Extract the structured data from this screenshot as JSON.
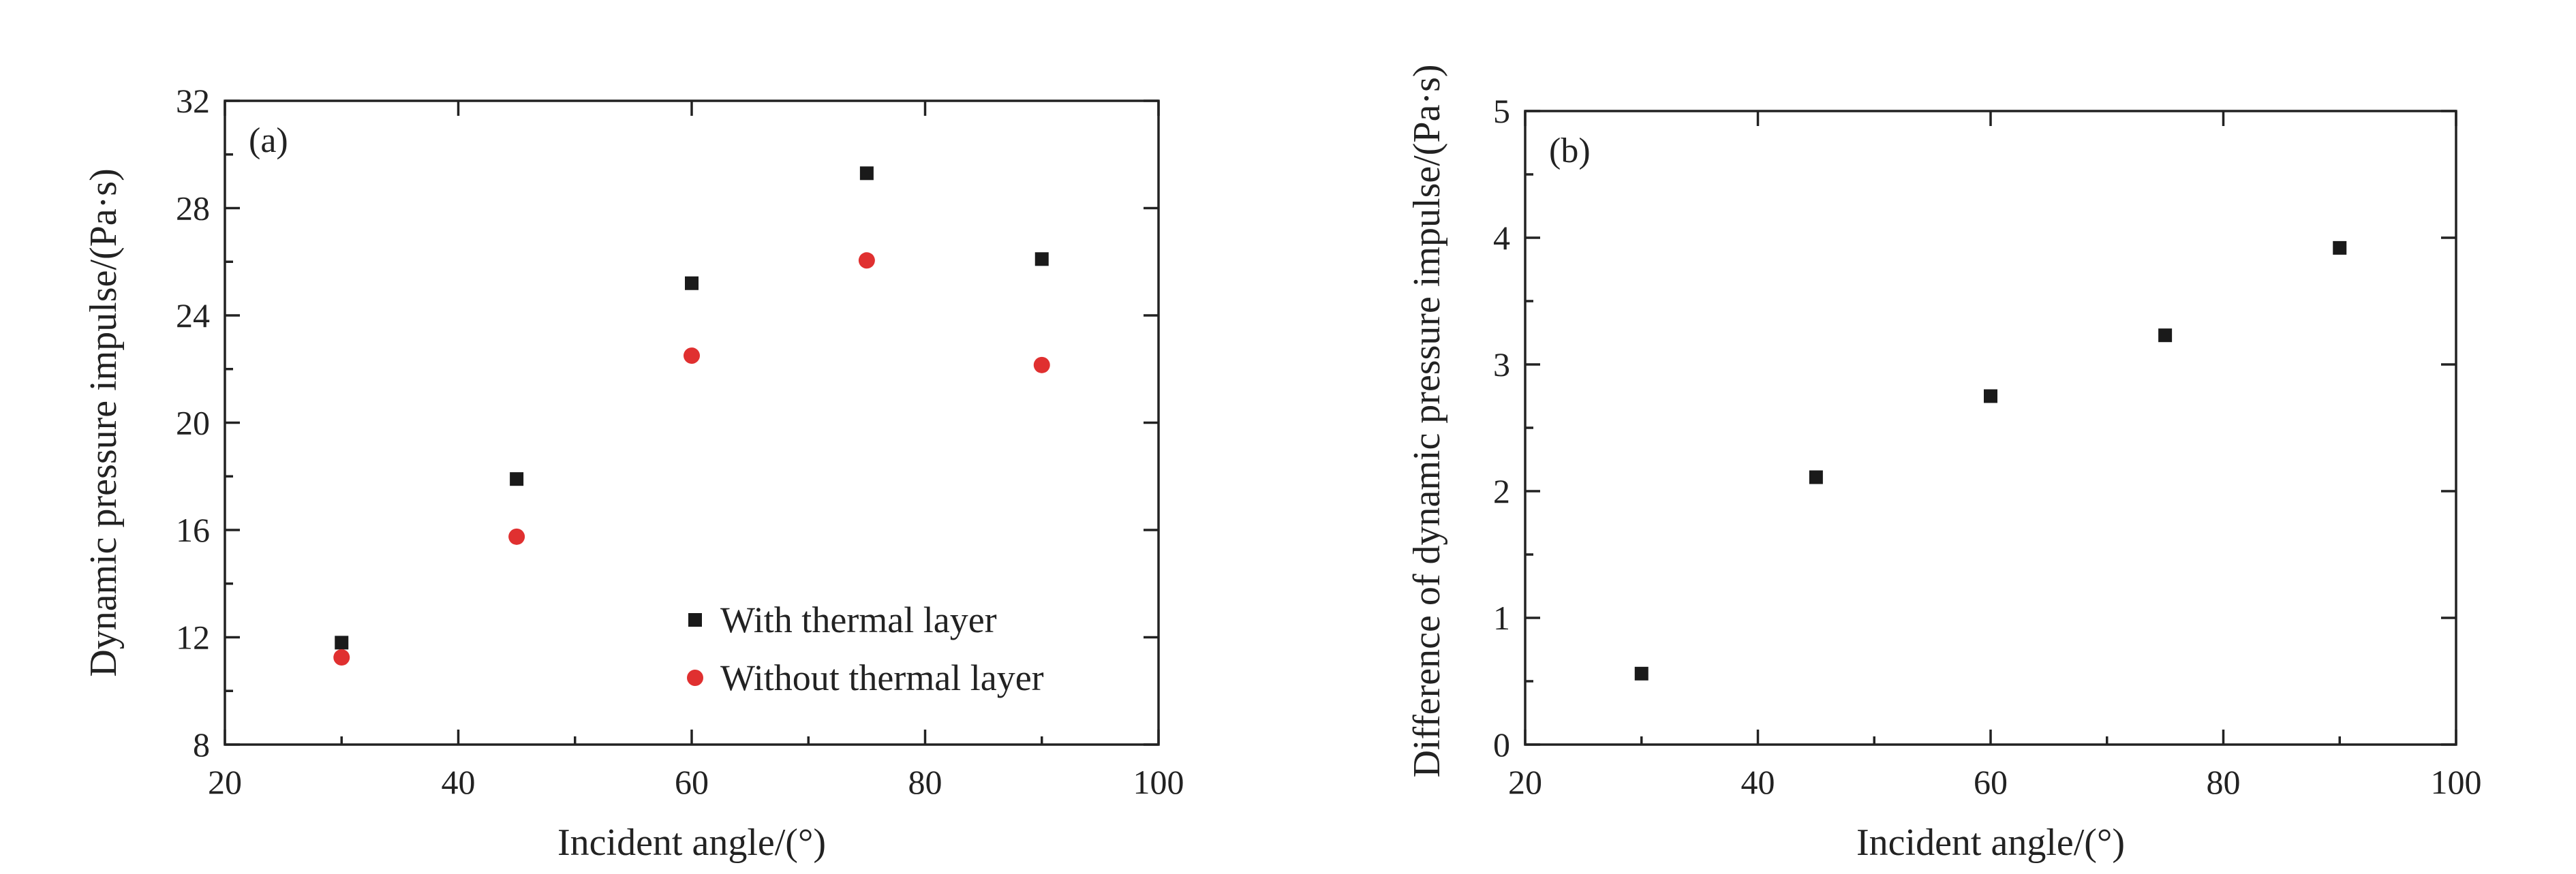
{
  "colors": {
    "with_thermal_layer": "#1a1a1a",
    "without_thermal_layer": "#e03030",
    "axis": "#222222"
  },
  "chart_data": [
    {
      "type": "scatter",
      "panel_label": "(a)",
      "xlabel": "Incident angle/(°)",
      "ylabel": "Dynamic pressure impulse/(Pa·s)",
      "xlim": [
        20,
        100
      ],
      "ylim": [
        8,
        32
      ],
      "xticks": [
        20,
        40,
        60,
        80,
        100
      ],
      "yticks": [
        8,
        12,
        16,
        20,
        24,
        28,
        32
      ],
      "legend_position": "bottom-right",
      "series": [
        {
          "name": "With thermal layer",
          "marker": "square",
          "color": "#1a1a1a",
          "x": [
            30,
            45,
            60,
            75,
            90
          ],
          "y": [
            11.8,
            17.9,
            25.2,
            29.3,
            26.1
          ]
        },
        {
          "name": "Without thermal layer",
          "marker": "circle",
          "color": "#e03030",
          "x": [
            30,
            45,
            60,
            75,
            90
          ],
          "y": [
            11.25,
            15.75,
            22.5,
            26.05,
            22.15
          ]
        }
      ]
    },
    {
      "type": "scatter",
      "panel_label": "(b)",
      "xlabel": "Incident angle/(°)",
      "ylabel": "Difference of dynamic pressure impulse/(Pa·s)",
      "xlim": [
        20,
        100
      ],
      "ylim": [
        0,
        5
      ],
      "xticks": [
        20,
        40,
        60,
        80,
        100
      ],
      "yticks": [
        0,
        1,
        2,
        3,
        4,
        5
      ],
      "series": [
        {
          "marker": "square",
          "color": "#1a1a1a",
          "x": [
            30,
            45,
            60,
            75,
            90
          ],
          "y": [
            0.56,
            2.11,
            2.75,
            3.23,
            3.92
          ]
        }
      ]
    }
  ]
}
